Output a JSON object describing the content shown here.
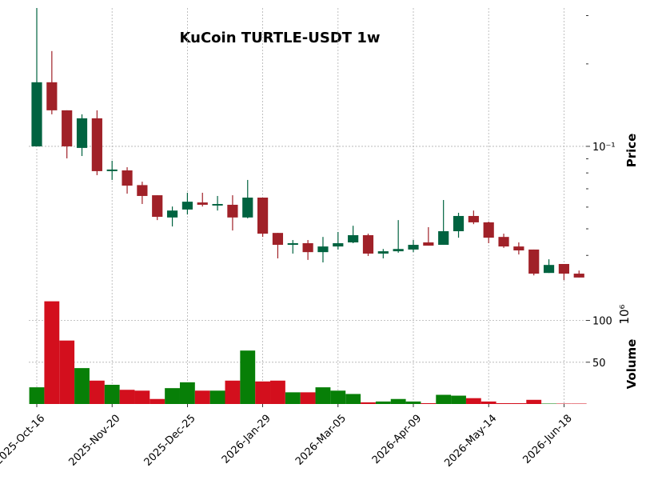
{
  "chart_data": {
    "type": "candlestick",
    "title": "KuCoin TURTLE-USDT 1w",
    "categories": [
      "2025-Oct-16",
      null,
      null,
      null,
      null,
      "2025-Nov-20",
      null,
      null,
      null,
      null,
      "2025-Dec-25",
      null,
      null,
      null,
      null,
      "2026-Jan-29",
      null,
      null,
      null,
      null,
      "2026-Mar-05",
      null,
      null,
      null,
      null,
      "2026-Apr-09",
      null,
      null,
      null,
      null,
      "2026-May-14",
      null,
      null,
      null,
      null,
      "2026-Jun-18",
      null
    ],
    "open": [
      0.1,
      0.1714,
      0.1354,
      0.0987,
      0.1266,
      0.0812,
      0.0817,
      0.0722,
      0.0663,
      0.055,
      0.0588,
      0.0624,
      0.0608,
      0.0612,
      0.055,
      0.065,
      0.0483,
      0.0437,
      0.0443,
      0.0411,
      0.0431,
      0.0446,
      0.0474,
      0.0406,
      0.0414,
      0.042,
      0.0446,
      0.0437,
      0.049,
      0.0557,
      0.0528,
      0.0467,
      0.0431,
      0.042,
      0.0345,
      0.0372,
      0.0343
    ],
    "high": [
      0.32,
      0.2228,
      0.1354,
      0.1309,
      0.1354,
      0.0886,
      0.0839,
      0.0743,
      0.0663,
      0.0603,
      0.0677,
      0.0677,
      0.0659,
      0.0663,
      0.0754,
      0.065,
      0.0483,
      0.0455,
      0.0455,
      0.0467,
      0.0487,
      0.0513,
      0.048,
      0.0422,
      0.0538,
      0.0455,
      0.0507,
      0.0637,
      0.0572,
      0.0583,
      0.0531,
      0.048,
      0.0446,
      0.042,
      0.0387,
      0.0372,
      0.0352
    ],
    "low": [
      0.1,
      0.1309,
      0.0904,
      0.0922,
      0.0785,
      0.0754,
      0.0672,
      0.0616,
      0.0538,
      0.051,
      0.0564,
      0.0603,
      0.0583,
      0.0493,
      0.0546,
      0.0467,
      0.039,
      0.0406,
      0.0385,
      0.0377,
      0.042,
      0.0443,
      0.0398,
      0.039,
      0.0409,
      0.0411,
      0.0434,
      0.0437,
      0.0464,
      0.052,
      0.0443,
      0.0426,
      0.0403,
      0.0338,
      0.0345,
      0.0325,
      0.0332
    ],
    "close": [
      0.1714,
      0.1354,
      0.1,
      0.1266,
      0.0812,
      0.0823,
      0.0719,
      0.0659,
      0.0553,
      0.0583,
      0.0628,
      0.0612,
      0.0616,
      0.055,
      0.065,
      0.048,
      0.0437,
      0.0443,
      0.0411,
      0.0431,
      0.0443,
      0.0474,
      0.0406,
      0.0414,
      0.0422,
      0.0437,
      0.0434,
      0.049,
      0.0557,
      0.0528,
      0.0464,
      0.0431,
      0.0417,
      0.0343,
      0.0369,
      0.0343,
      0.0332
    ],
    "volume": [
      20,
      123,
      76,
      43,
      28,
      23,
      17,
      16,
      6,
      19,
      26,
      16,
      16,
      28,
      64,
      27,
      28,
      14,
      14,
      20,
      16,
      12,
      2,
      3,
      6,
      3,
      1,
      11,
      10,
      7,
      3,
      1,
      1,
      5,
      0.5,
      0.5,
      0.5
    ],
    "ylabel": "Price",
    "volume_label": "Volume",
    "volume_offset": "10⁶",
    "log_y": true,
    "ylim": [
      0.0304,
      0.32
    ],
    "yticks": [
      {
        "value": 0.1,
        "label": "10⁻¹"
      }
    ],
    "yminor_ticks": [
      0.04,
      0.05,
      0.06,
      0.07,
      0.08,
      0.09,
      0.2,
      0.3
    ],
    "volume_ylim": [
      0,
      137
    ],
    "volume_yticks": [
      50,
      100
    ],
    "grid": true,
    "up_color": "#006340",
    "down_color": "#a02128",
    "volume_up_color": "#077f07",
    "volume_down_color": "#d30f1d"
  }
}
